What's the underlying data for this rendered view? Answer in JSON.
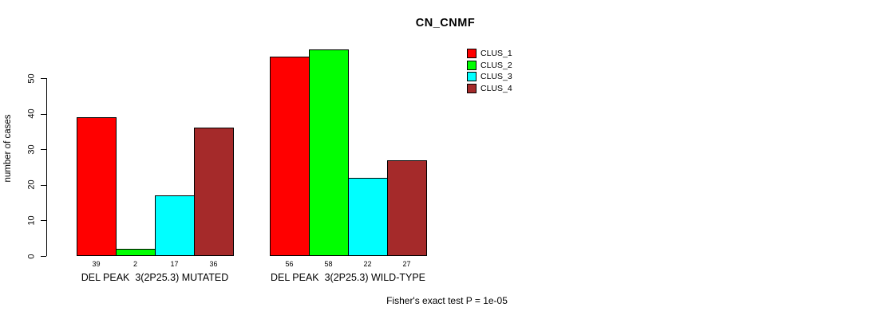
{
  "title": "CN_CNMF",
  "footer": "Fisher's exact test P = 1e-05",
  "chart_data": {
    "type": "bar",
    "title": "CN_CNMF",
    "xlabel": "",
    "ylabel": "number of cases",
    "ylim": [
      0,
      58
    ],
    "yticks": [
      0,
      10,
      20,
      30,
      40,
      50
    ],
    "grid": false,
    "legend_position": "right",
    "annotation": "Fisher's exact test P = 1e-05",
    "series": [
      {
        "name": "CLUS_1",
        "color": "#FF0000"
      },
      {
        "name": "CLUS_2",
        "color": "#00FF00"
      },
      {
        "name": "CLUS_3",
        "color": "#00FFFF"
      },
      {
        "name": "CLUS_4",
        "color": "#A52A2A"
      }
    ],
    "groups": [
      {
        "label": "DEL PEAK  3(2P25.3) MUTATED",
        "values": [
          39,
          2,
          17,
          36
        ]
      },
      {
        "label": "DEL PEAK  3(2P25.3) WILD-TYPE",
        "values": [
          56,
          58,
          22,
          27
        ]
      }
    ]
  }
}
